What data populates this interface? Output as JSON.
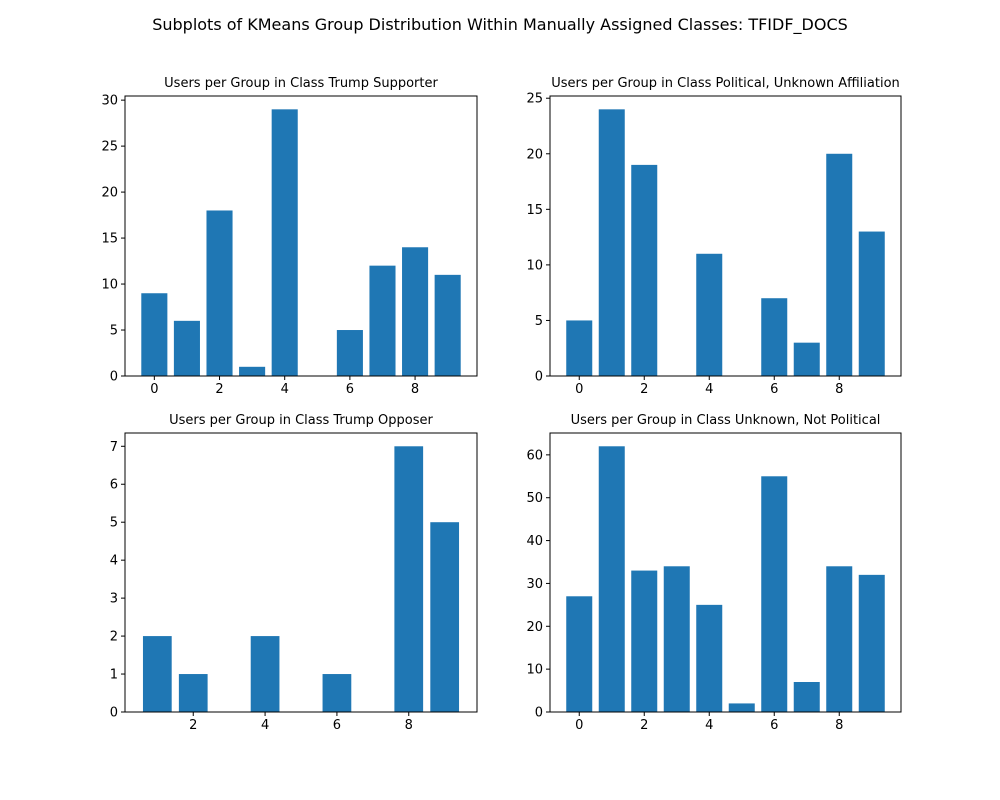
{
  "figure": {
    "suptitle": "Subplots of KMeans Group Distribution Within Manually Assigned Classes: TFIDF_DOCS"
  },
  "style": {
    "bar_color": "#1f77b4",
    "axes_color": "#000000",
    "background": "#ffffff"
  },
  "chart_data": [
    {
      "type": "bar",
      "title": "Users per Group in Class Trump Supporter",
      "grid": false,
      "x": [
        0,
        1,
        2,
        3,
        4,
        6,
        7,
        8,
        9
      ],
      "values": [
        9,
        6,
        18,
        1,
        29,
        5,
        12,
        14,
        11
      ],
      "xlim": [
        -0.9,
        9.9
      ],
      "ylim": [
        0,
        30.45
      ],
      "xticks": [
        0,
        2,
        4,
        6,
        8
      ],
      "yticks": [
        0,
        5,
        10,
        15,
        20,
        25,
        30
      ]
    },
    {
      "type": "bar",
      "title": "Users per Group in Class Political, Unknown Affiliation",
      "grid": false,
      "x": [
        0,
        1,
        2,
        4,
        6,
        7,
        8,
        9
      ],
      "values": [
        5,
        24,
        19,
        11,
        7,
        3,
        20,
        13
      ],
      "xlim": [
        -0.9,
        9.9
      ],
      "ylim": [
        0,
        25.2
      ],
      "xticks": [
        0,
        2,
        4,
        6,
        8
      ],
      "yticks": [
        0,
        5,
        10,
        15,
        20,
        25
      ]
    },
    {
      "type": "bar",
      "title": "Users per Group in Class Trump Opposer",
      "grid": false,
      "x": [
        1,
        2,
        4,
        6,
        8,
        9
      ],
      "values": [
        2,
        1,
        2,
        1,
        7,
        5
      ],
      "xlim": [
        0.1,
        9.9
      ],
      "ylim": [
        0,
        7.35
      ],
      "xticks": [
        2,
        4,
        6,
        8
      ],
      "yticks": [
        0,
        1,
        2,
        3,
        4,
        5,
        6,
        7
      ]
    },
    {
      "type": "bar",
      "title": "Users per Group in Class Unknown, Not Political",
      "grid": false,
      "x": [
        0,
        1,
        2,
        3,
        4,
        5,
        6,
        7,
        8,
        9
      ],
      "values": [
        27,
        62,
        33,
        34,
        25,
        2,
        55,
        7,
        34,
        32
      ],
      "xlim": [
        -0.9,
        9.9
      ],
      "ylim": [
        0,
        65.1
      ],
      "xticks": [
        0,
        2,
        4,
        6,
        8
      ],
      "yticks": [
        0,
        10,
        20,
        30,
        40,
        50,
        60
      ]
    }
  ]
}
